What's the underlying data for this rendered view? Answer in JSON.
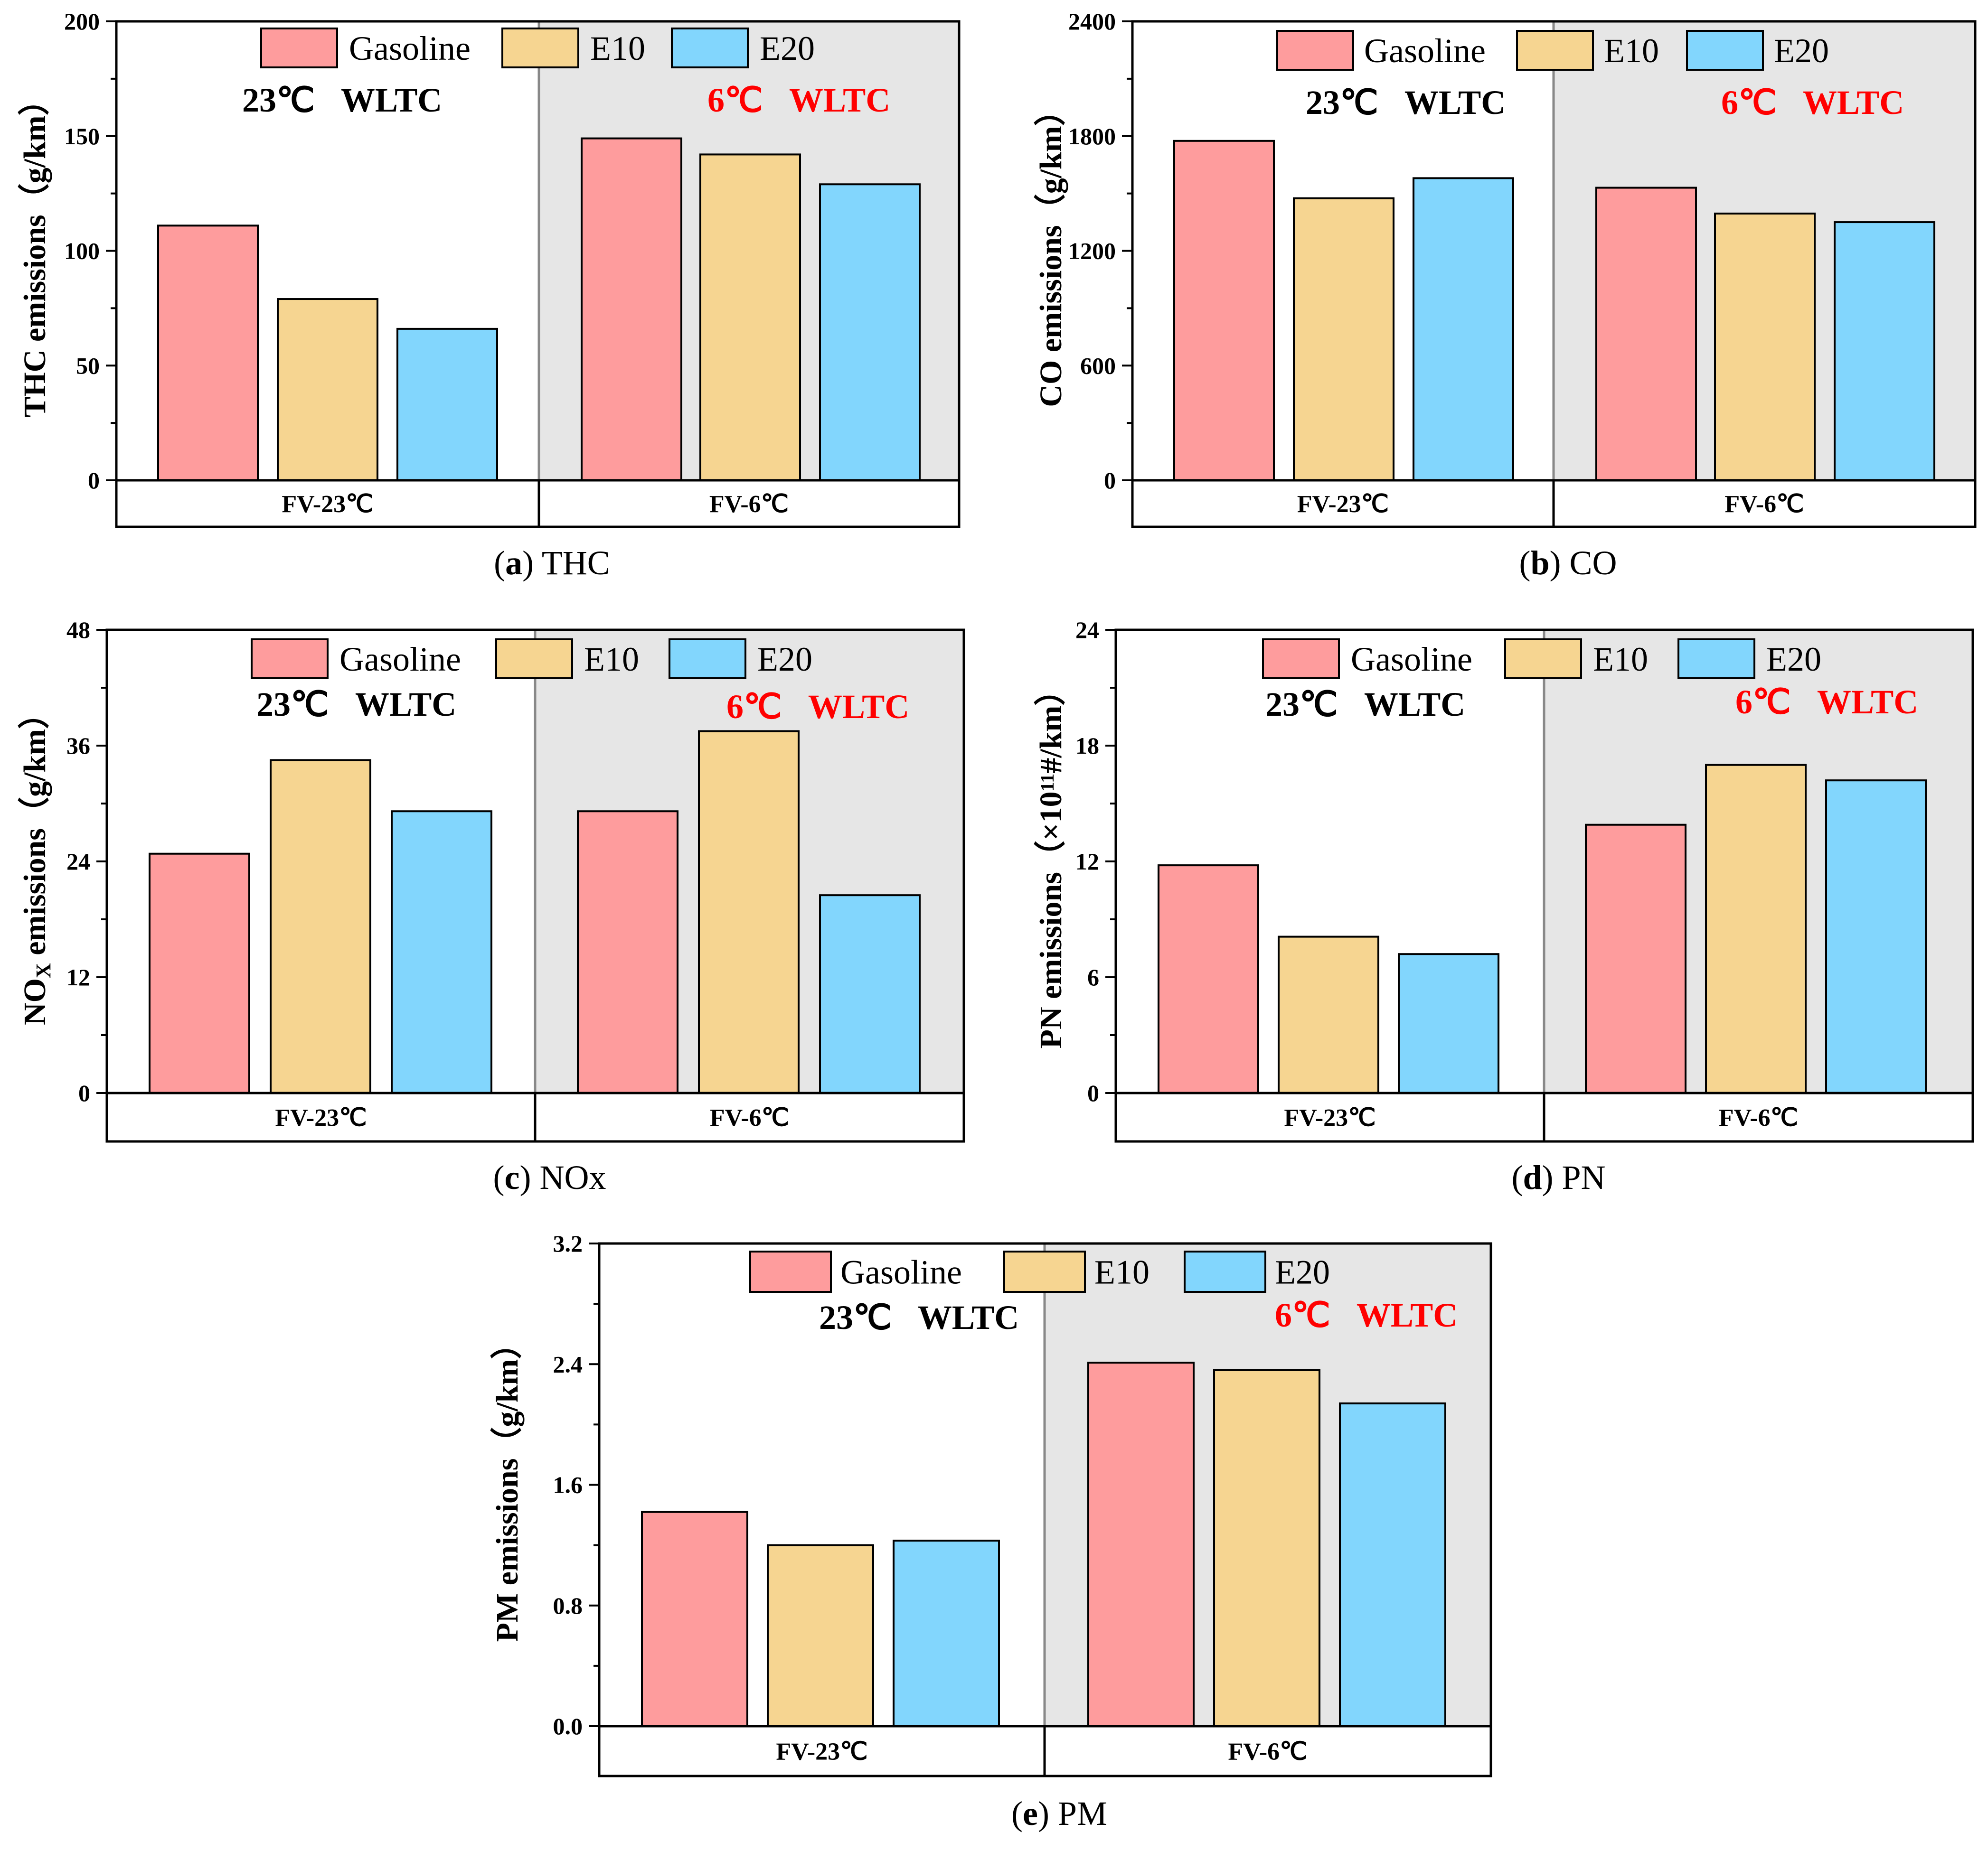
{
  "colors": {
    "gasoline": "#fe9c9d",
    "e10": "#f6d591",
    "e20": "#82d6fd",
    "cold_panel_bg": "#e6e6e6",
    "cold_text": "#ff0000",
    "warm_text": "#000000"
  },
  "legend": [
    "Gasoline",
    "E10",
    "E20"
  ],
  "chart_data": [
    {
      "type": "bar",
      "panel": "a",
      "caption_letter": "a",
      "caption_text": "THC",
      "ylabel_main": "THC emissions（g/km）",
      "ylim": [
        0,
        200
      ],
      "yticks": [
        "0",
        "50",
        "100",
        "150",
        "200"
      ],
      "categories": [
        "FV-23℃",
        "FV-6℃"
      ],
      "conditions": [
        {
          "temp": "23℃",
          "cycle": "WLTC"
        },
        {
          "temp": "6℃",
          "cycle": "WLTC"
        }
      ],
      "series": [
        {
          "name": "Gasoline",
          "values": [
            111,
            149
          ]
        },
        {
          "name": "E10",
          "values": [
            79,
            142
          ]
        },
        {
          "name": "E20",
          "values": [
            66,
            129
          ]
        }
      ]
    },
    {
      "type": "bar",
      "panel": "b",
      "caption_letter": "b",
      "caption_text": "CO",
      "ylabel_main": "CO emissions（g/km）",
      "ylim": [
        0,
        2400
      ],
      "yticks": [
        "0",
        "600",
        "1200",
        "1800",
        "2400"
      ],
      "categories": [
        "FV-23℃",
        "FV-6℃"
      ],
      "conditions": [
        {
          "temp": "23℃",
          "cycle": "WLTC"
        },
        {
          "temp": "6℃",
          "cycle": "WLTC"
        }
      ],
      "series": [
        {
          "name": "Gasoline",
          "values": [
            1775,
            1530
          ]
        },
        {
          "name": "E10",
          "values": [
            1475,
            1395
          ]
        },
        {
          "name": "E20",
          "values": [
            1580,
            1350
          ]
        }
      ]
    },
    {
      "type": "bar",
      "panel": "c",
      "caption_letter": "c",
      "caption_text": "NOx",
      "ylabel_main": "NO",
      "ylabel_sub": "X",
      "ylabel_rest": " emissions（g/km）",
      "ylim": [
        0,
        48
      ],
      "yticks": [
        "0",
        "12",
        "24",
        "36",
        "48"
      ],
      "categories": [
        "FV-23℃",
        "FV-6℃"
      ],
      "conditions": [
        {
          "temp": "23℃",
          "cycle": "WLTC"
        },
        {
          "temp": "6℃",
          "cycle": "WLTC"
        }
      ],
      "series": [
        {
          "name": "Gasoline",
          "values": [
            24.8,
            29.2
          ]
        },
        {
          "name": "E10",
          "values": [
            34.5,
            37.5
          ]
        },
        {
          "name": "E20",
          "values": [
            29.2,
            20.5
          ]
        }
      ]
    },
    {
      "type": "bar",
      "panel": "d",
      "caption_letter": "d",
      "caption_text": "PN",
      "ylabel_main": "PN emissions（×10",
      "ylabel_sup": "11",
      "ylabel_rest": "#/km）",
      "ylim": [
        0,
        24
      ],
      "yticks": [
        "0",
        "6",
        "12",
        "18",
        "24"
      ],
      "categories": [
        "FV-23℃",
        "FV-6℃"
      ],
      "conditions": [
        {
          "temp": "23℃",
          "cycle": "WLTC"
        },
        {
          "temp": "6℃",
          "cycle": "WLTC"
        }
      ],
      "series": [
        {
          "name": "Gasoline",
          "values": [
            11.8,
            13.9
          ]
        },
        {
          "name": "E10",
          "values": [
            8.1,
            17.0
          ]
        },
        {
          "name": "E20",
          "values": [
            7.2,
            16.2
          ]
        }
      ]
    },
    {
      "type": "bar",
      "panel": "e",
      "caption_letter": "e",
      "caption_text": "PM",
      "ylabel_main": "PM emissions（g/km）",
      "ylim": [
        0,
        3.2
      ],
      "yticks": [
        "0.0",
        "0.8",
        "1.6",
        "2.4",
        "3.2"
      ],
      "categories": [
        "FV-23℃",
        "FV-6℃"
      ],
      "conditions": [
        {
          "temp": "23℃",
          "cycle": "WLTC"
        },
        {
          "temp": "6℃",
          "cycle": "WLTC"
        }
      ],
      "series": [
        {
          "name": "Gasoline",
          "values": [
            1.42,
            2.41
          ]
        },
        {
          "name": "E10",
          "values": [
            1.2,
            2.36
          ]
        },
        {
          "name": "E20",
          "values": [
            1.23,
            2.14
          ]
        }
      ]
    }
  ]
}
